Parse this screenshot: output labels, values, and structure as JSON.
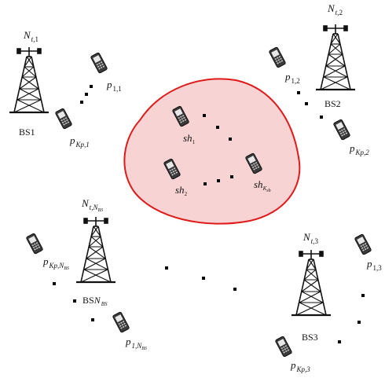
{
  "colors": {
    "shared_region_fill": "#f7d3d3",
    "shared_region_stroke": "#e01919",
    "tower": "#111111",
    "phone": "#222222"
  },
  "icons": {
    "base_station": "tower-icon",
    "user": "mobile-phone-icon"
  },
  "stations": [
    {
      "id": "BS1",
      "name": "BS1",
      "antenna": {
        "base": "N",
        "sub_a": "t",
        "sub_b": "1"
      },
      "users": [
        {
          "base": "p",
          "sub": "1,1"
        },
        {
          "base": "p",
          "sub": "Kp,1"
        }
      ]
    },
    {
      "id": "BS2",
      "name": "BS2",
      "antenna": {
        "base": "N",
        "sub_a": "t",
        "sub_b": "2"
      },
      "users": [
        {
          "base": "p",
          "sub": "1,2"
        },
        {
          "base": "p",
          "sub": "Kp,2"
        }
      ]
    },
    {
      "id": "BSNBS",
      "name_prefix": "BS",
      "name_sub": "N",
      "name_subsub": "BS",
      "antenna": {
        "base": "N",
        "sub_a": "t",
        "sub_b": "N",
        "sub_b_sub": "BS"
      },
      "users": [
        {
          "base": "p",
          "sub": "Kp,N",
          "subsub": "BS"
        },
        {
          "base": "p",
          "sub": "1,N",
          "subsub": "BS"
        }
      ]
    },
    {
      "id": "BS3",
      "name": "BS3",
      "antenna": {
        "base": "N",
        "sub_a": "t",
        "sub_b": "3"
      },
      "users": [
        {
          "base": "p",
          "sub": "1,3"
        },
        {
          "base": "p",
          "sub": "Kp,3"
        }
      ]
    }
  ],
  "shared_users": [
    {
      "base": "sh",
      "sub": "1"
    },
    {
      "base": "sh",
      "sub": "2"
    },
    {
      "base": "sh",
      "sub": "K",
      "subsub": "sh"
    }
  ]
}
